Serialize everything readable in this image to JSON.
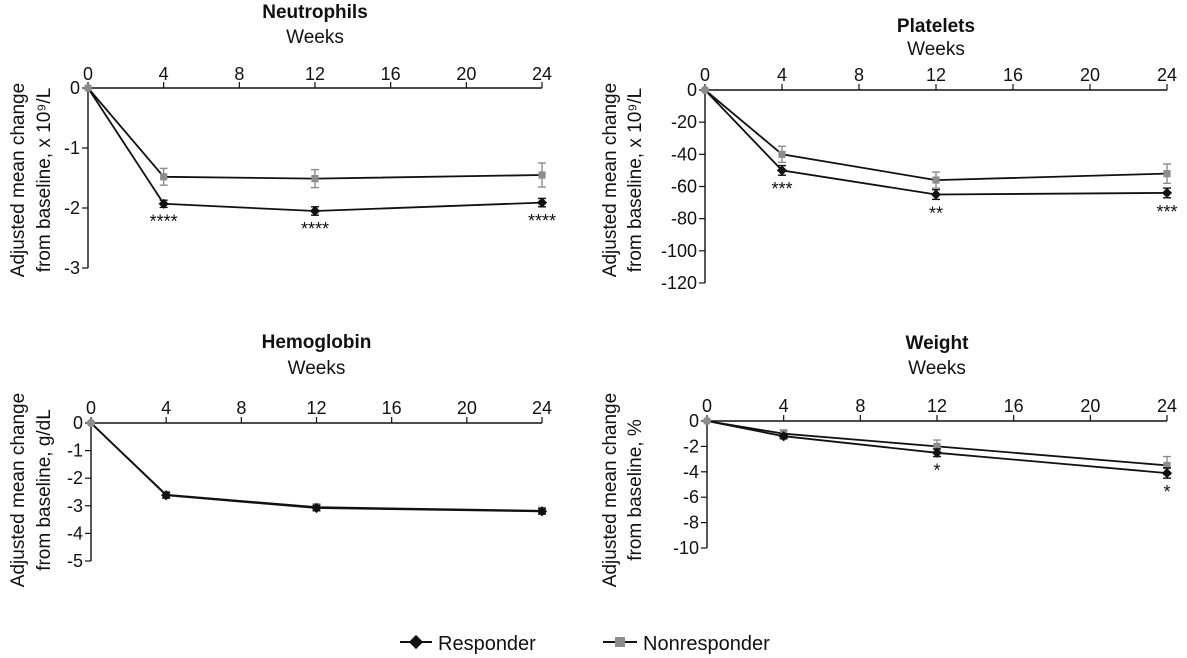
{
  "colors": {
    "responder": "#111111",
    "nonresponder": "#8c8c8c",
    "axis": "#111111"
  },
  "legend": [
    {
      "label": "Responder",
      "marker": "diamond",
      "color": "#111111"
    },
    {
      "label": "Nonresponder",
      "marker": "square",
      "color": "#8c8c8c"
    }
  ],
  "chart_data": [
    {
      "type": "line",
      "title": "Neutrophils",
      "xlabel": "Weeks",
      "ylabel_lines": [
        "Adjusted mean change",
        "from baseline, x 10⁹/L"
      ],
      "x_ticks": [
        0,
        4,
        8,
        12,
        16,
        20,
        24
      ],
      "xlim": [
        0,
        24
      ],
      "y_ticks": [
        0,
        -1,
        -2,
        -3
      ],
      "ylim": [
        -3,
        0
      ],
      "x": [
        0,
        4,
        12,
        24
      ],
      "series": [
        {
          "name": "Responder",
          "values": [
            0,
            -1.93,
            -2.05,
            -1.91
          ],
          "errors": [
            0,
            0.06,
            0.07,
            0.07
          ]
        },
        {
          "name": "Nonresponder",
          "values": [
            0,
            -1.48,
            -1.51,
            -1.45
          ],
          "errors": [
            0,
            0.14,
            0.15,
            0.2
          ]
        }
      ],
      "annotations": [
        {
          "x": 4,
          "text": "****"
        },
        {
          "x": 12,
          "text": "****"
        },
        {
          "x": 24,
          "text": "****"
        }
      ]
    },
    {
      "type": "line",
      "title": "Platelets",
      "xlabel": "Weeks",
      "ylabel_lines": [
        "Adjusted mean change",
        "from baseline, x 10⁹/L"
      ],
      "x_ticks": [
        0,
        4,
        8,
        12,
        16,
        20,
        24
      ],
      "xlim": [
        0,
        24
      ],
      "y_ticks": [
        0,
        -20,
        -40,
        -60,
        -80,
        -100,
        -120
      ],
      "ylim": [
        -120,
        0
      ],
      "x": [
        0,
        4,
        12,
        24
      ],
      "series": [
        {
          "name": "Responder",
          "values": [
            0,
            -50,
            -65,
            -64
          ],
          "errors": [
            0,
            3,
            3,
            3
          ]
        },
        {
          "name": "Nonresponder",
          "values": [
            0,
            -40,
            -56,
            -52
          ],
          "errors": [
            0,
            5,
            5,
            6
          ]
        }
      ],
      "annotations": [
        {
          "x": 4,
          "text": "***"
        },
        {
          "x": 12,
          "text": "**"
        },
        {
          "x": 24,
          "text": "***"
        }
      ]
    },
    {
      "type": "line",
      "title": "Hemoglobin",
      "xlabel": "Weeks",
      "ylabel_lines": [
        "Adjusted mean change",
        "from baseline, g/dL"
      ],
      "x_ticks": [
        0,
        4,
        8,
        12,
        16,
        20,
        24
      ],
      "xlim": [
        0,
        24
      ],
      "y_ticks": [
        0,
        -1,
        -2,
        -3,
        -4,
        -5
      ],
      "ylim": [
        -5,
        0
      ],
      "x": [
        0,
        4,
        12,
        24
      ],
      "series": [
        {
          "name": "Responder",
          "values": [
            0,
            -2.62,
            -3.08,
            -3.2
          ],
          "errors": [
            0,
            0.1,
            0.1,
            0.1
          ]
        },
        {
          "name": "Nonresponder",
          "values": [
            0,
            -2.6,
            -3.05,
            -3.18
          ],
          "errors": [
            0,
            0.12,
            0.12,
            0.12
          ]
        }
      ],
      "annotations": []
    },
    {
      "type": "line",
      "title": "Weight",
      "xlabel": "Weeks",
      "ylabel_lines": [
        "Adjusted mean change",
        "from baseline, %"
      ],
      "x_ticks": [
        0,
        4,
        8,
        12,
        16,
        20,
        24
      ],
      "xlim": [
        0,
        24
      ],
      "y_ticks": [
        0,
        -2,
        -4,
        -6,
        -8,
        -10
      ],
      "ylim": [
        -10,
        0
      ],
      "x": [
        0,
        4,
        12,
        24
      ],
      "series": [
        {
          "name": "Responder",
          "values": [
            0,
            -1.2,
            -2.5,
            -4.1
          ],
          "errors": [
            0,
            0.2,
            0.3,
            0.4
          ]
        },
        {
          "name": "Nonresponder",
          "values": [
            0,
            -1.0,
            -2.0,
            -3.5
          ],
          "errors": [
            0,
            0.3,
            0.5,
            0.7
          ]
        }
      ],
      "annotations": [
        {
          "x": 12,
          "text": "*"
        },
        {
          "x": 24,
          "text": "*"
        }
      ]
    }
  ]
}
